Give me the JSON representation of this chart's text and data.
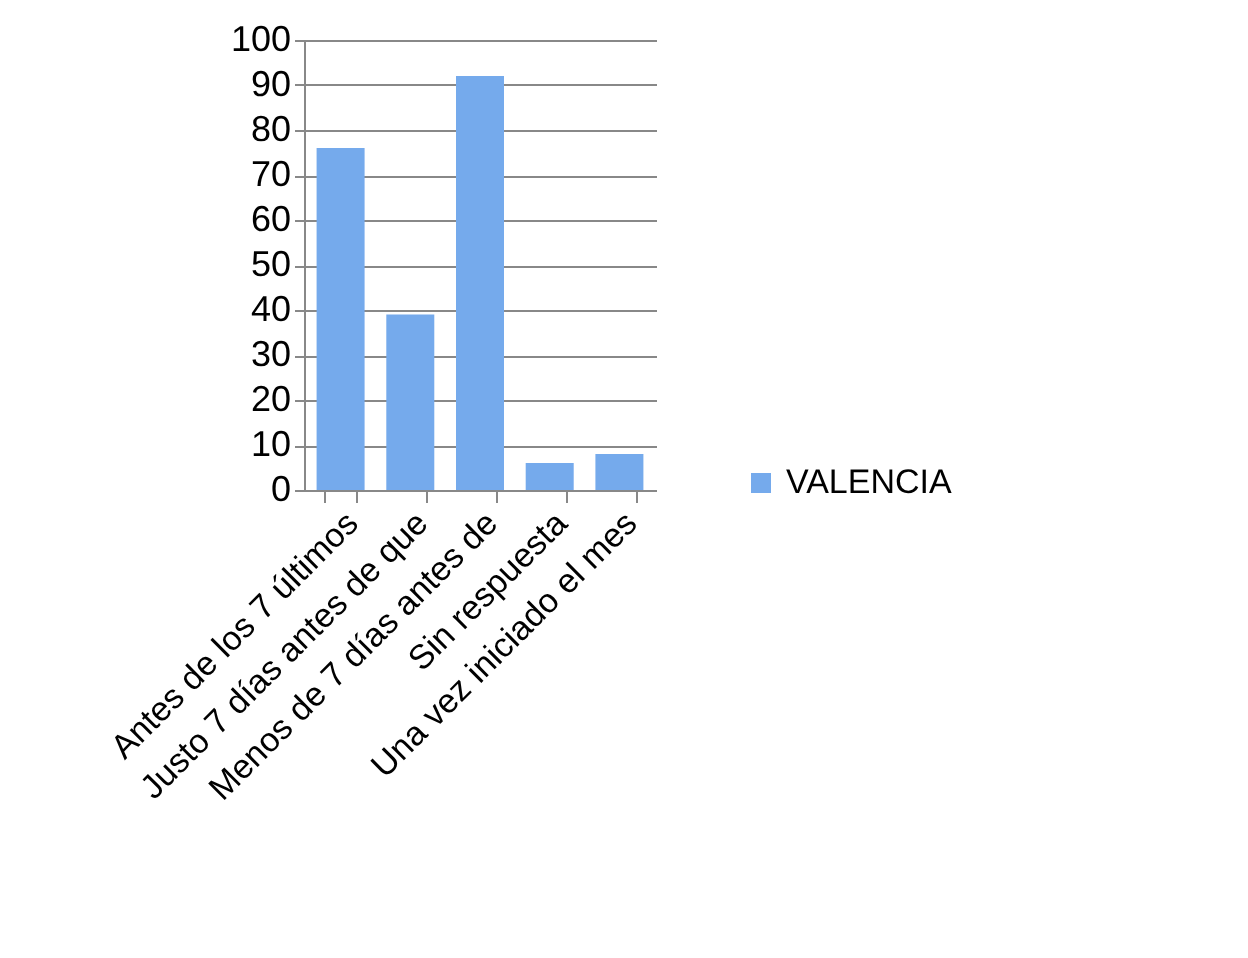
{
  "chart_data": {
    "type": "bar",
    "categories": [
      "Antes de los 7 últimos",
      "Justo 7 días antes de que",
      "Menos de 7 días antes de",
      "Sin respuesta",
      "Una vez iniciado el mes"
    ],
    "series": [
      {
        "name": "VALENCIA",
        "color": "#75aaec",
        "values": [
          76,
          39,
          92,
          6,
          8
        ]
      }
    ],
    "ylim": [
      0,
      100
    ],
    "yticks": [
      0,
      10,
      20,
      30,
      40,
      50,
      60,
      70,
      80,
      90,
      100
    ],
    "grid": "y",
    "legend": "right"
  }
}
